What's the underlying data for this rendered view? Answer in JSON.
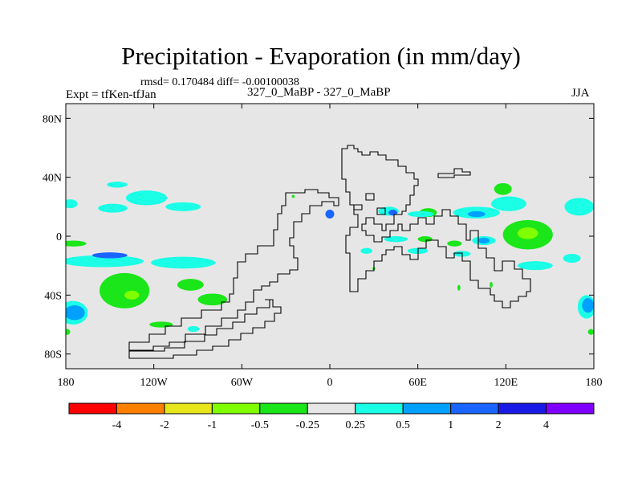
{
  "title": "Precipitation - Evaporation (in mm/day)",
  "stats_line": "rmsd= 0.170484 diff= -0.00100038",
  "left_label": "Expt = tfKen-tfJan",
  "center_label": "327_0_MaBP - 327_0_MaBP",
  "right_label": "JJA",
  "chart_data": {
    "type": "heatmap",
    "title": "Precipitation - Evaporation (in mm/day)",
    "x_axis": {
      "range": [
        -180,
        180
      ],
      "ticks": [
        -180,
        -120,
        -60,
        0,
        60,
        120,
        180
      ],
      "tick_labels": [
        "180",
        "120W",
        "60W",
        "0",
        "60E",
        "120E",
        "180"
      ]
    },
    "y_axis": {
      "range": [
        -90,
        90
      ],
      "ticks": [
        80,
        40,
        0,
        -40,
        -80
      ],
      "tick_labels": [
        "80N",
        "40N",
        "0",
        "40S",
        "80S"
      ]
    },
    "background_color": "#e6e6e6",
    "legend": {
      "placement": "bottom",
      "colors": [
        "#ff0000",
        "#ff8000",
        "#e6e61a",
        "#80ff00",
        "#1ae61a",
        "#e6e6e6",
        "#1affe6",
        "#00a0ff",
        "#1a64ff",
        "#1a1ae6",
        "#8000ff"
      ],
      "labels": [
        "-4",
        "-2",
        "-1",
        "-0.5",
        "-0.25",
        "0.25",
        "0.5",
        "1",
        "2",
        "4"
      ]
    },
    "regions": [
      {
        "lon": -177,
        "lat": 22,
        "rlon": 5,
        "rlat": 3,
        "color": "#1affe6"
      },
      {
        "lon": -145,
        "lat": 35,
        "rlon": 7,
        "rlat": 2,
        "color": "#1affe6"
      },
      {
        "lon": -148,
        "lat": 19,
        "rlon": 10,
        "rlat": 3,
        "color": "#1affe6"
      },
      {
        "lon": -125,
        "lat": 26,
        "rlon": 14,
        "rlat": 5,
        "color": "#1affe6"
      },
      {
        "lon": -100,
        "lat": 20,
        "rlon": 12,
        "rlat": 3,
        "color": "#1affe6"
      },
      {
        "lon": -155,
        "lat": -17,
        "rlon": 28,
        "rlat": 4,
        "color": "#1affe6"
      },
      {
        "lon": -100,
        "lat": -18,
        "rlon": 22,
        "rlat": 4,
        "color": "#1affe6"
      },
      {
        "lon": -150,
        "lat": -13,
        "rlon": 12,
        "rlat": 2,
        "color": "#1a64ff"
      },
      {
        "lon": -175,
        "lat": -5,
        "rlon": 9,
        "rlat": 2,
        "color": "#1ae61a"
      },
      {
        "lon": -140,
        "lat": -37,
        "rlon": 17,
        "rlat": 12,
        "color": "#1ae61a"
      },
      {
        "lon": -135,
        "lat": -40,
        "rlon": 5,
        "rlat": 3,
        "color": "#80ff00"
      },
      {
        "lon": -95,
        "lat": -33,
        "rlon": 9,
        "rlat": 4,
        "color": "#1ae61a"
      },
      {
        "lon": -80,
        "lat": -43,
        "rlon": 10,
        "rlat": 4,
        "color": "#1ae61a"
      },
      {
        "lon": -175,
        "lat": -52,
        "rlon": 10,
        "rlat": 8,
        "color": "#1affe6"
      },
      {
        "lon": -174,
        "lat": -52,
        "rlon": 7,
        "rlat": 5,
        "color": "#00a0ff"
      },
      {
        "lon": -93,
        "lat": -63,
        "rlon": 4,
        "rlat": 2,
        "color": "#1affe6"
      },
      {
        "lon": -115,
        "lat": -60,
        "rlon": 8,
        "rlat": 2,
        "color": "#1ae61a"
      },
      {
        "lon": -179,
        "lat": -65,
        "rlon": 2,
        "rlat": 2,
        "color": "#1ae61a"
      },
      {
        "lon": 0,
        "lat": 15,
        "rlon": 3,
        "rlat": 3,
        "color": "#1a64ff"
      },
      {
        "lon": 40,
        "lat": 17,
        "rlon": 7,
        "rlat": 3,
        "color": "#1affe6"
      },
      {
        "lon": 43,
        "lat": 16,
        "rlon": 3,
        "rlat": 2,
        "color": "#1a64ff"
      },
      {
        "lon": 67,
        "lat": 16,
        "rlon": 6,
        "rlat": 3,
        "color": "#1ae61a"
      },
      {
        "lon": 62,
        "lat": 15,
        "rlon": 9,
        "rlat": 2,
        "color": "#1affe6"
      },
      {
        "lon": 100,
        "lat": 16,
        "rlon": 16,
        "rlat": 4,
        "color": "#1affe6"
      },
      {
        "lon": 100,
        "lat": 15,
        "rlon": 6,
        "rlat": 2,
        "color": "#00a0ff"
      },
      {
        "lon": 118,
        "lat": 32,
        "rlon": 6,
        "rlat": 4,
        "color": "#1ae61a"
      },
      {
        "lon": 122,
        "lat": 22,
        "rlon": 12,
        "rlat": 5,
        "color": "#1affe6"
      },
      {
        "lon": 135,
        "lat": 1,
        "rlon": 17,
        "rlat": 10,
        "color": "#1ae61a"
      },
      {
        "lon": 135,
        "lat": 2,
        "rlon": 7,
        "rlat": 4,
        "color": "#80ff00"
      },
      {
        "lon": 170,
        "lat": 20,
        "rlon": 10,
        "rlat": 6,
        "color": "#1affe6"
      },
      {
        "lon": 105,
        "lat": -3,
        "rlon": 8,
        "rlat": 3,
        "color": "#1affe6"
      },
      {
        "lon": 105,
        "lat": -3,
        "rlon": 4,
        "rlat": 2,
        "color": "#00a0ff"
      },
      {
        "lon": 45,
        "lat": -2,
        "rlon": 8,
        "rlat": 2,
        "color": "#1affe6"
      },
      {
        "lon": 65,
        "lat": -2,
        "rlon": 5,
        "rlat": 2,
        "color": "#1ae61a"
      },
      {
        "lon": 85,
        "lat": -5,
        "rlon": 5,
        "rlat": 2,
        "color": "#1ae61a"
      },
      {
        "lon": 25,
        "lat": -10,
        "rlon": 4,
        "rlat": 2,
        "color": "#1affe6"
      },
      {
        "lon": 60,
        "lat": -10,
        "rlon": 7,
        "rlat": 2,
        "color": "#1affe6"
      },
      {
        "lon": 90,
        "lat": -12,
        "rlon": 6,
        "rlat": 2,
        "color": "#1affe6"
      },
      {
        "lon": 30,
        "lat": -22,
        "rlon": 1,
        "rlat": 1,
        "color": "#1ae61a"
      },
      {
        "lon": 88,
        "lat": -35,
        "rlon": 1,
        "rlat": 2,
        "color": "#1ae61a"
      },
      {
        "lon": 110,
        "lat": -33,
        "rlon": 1,
        "rlat": 2,
        "color": "#1ae61a"
      },
      {
        "lon": 140,
        "lat": -20,
        "rlon": 12,
        "rlat": 3,
        "color": "#1affe6"
      },
      {
        "lon": 165,
        "lat": -15,
        "rlon": 6,
        "rlat": 3,
        "color": "#1affe6"
      },
      {
        "lon": 175,
        "lat": -48,
        "rlon": 6,
        "rlat": 8,
        "color": "#1affe6"
      },
      {
        "lon": 176,
        "lat": -47,
        "rlon": 4,
        "rlat": 5,
        "color": "#00a0ff"
      },
      {
        "lon": 178,
        "lat": -65,
        "rlon": 2,
        "rlat": 2,
        "color": "#1ae61a"
      },
      {
        "lon": -25,
        "lat": 27,
        "rlon": 1,
        "rlat": 1,
        "color": "#1ae61a"
      }
    ]
  }
}
